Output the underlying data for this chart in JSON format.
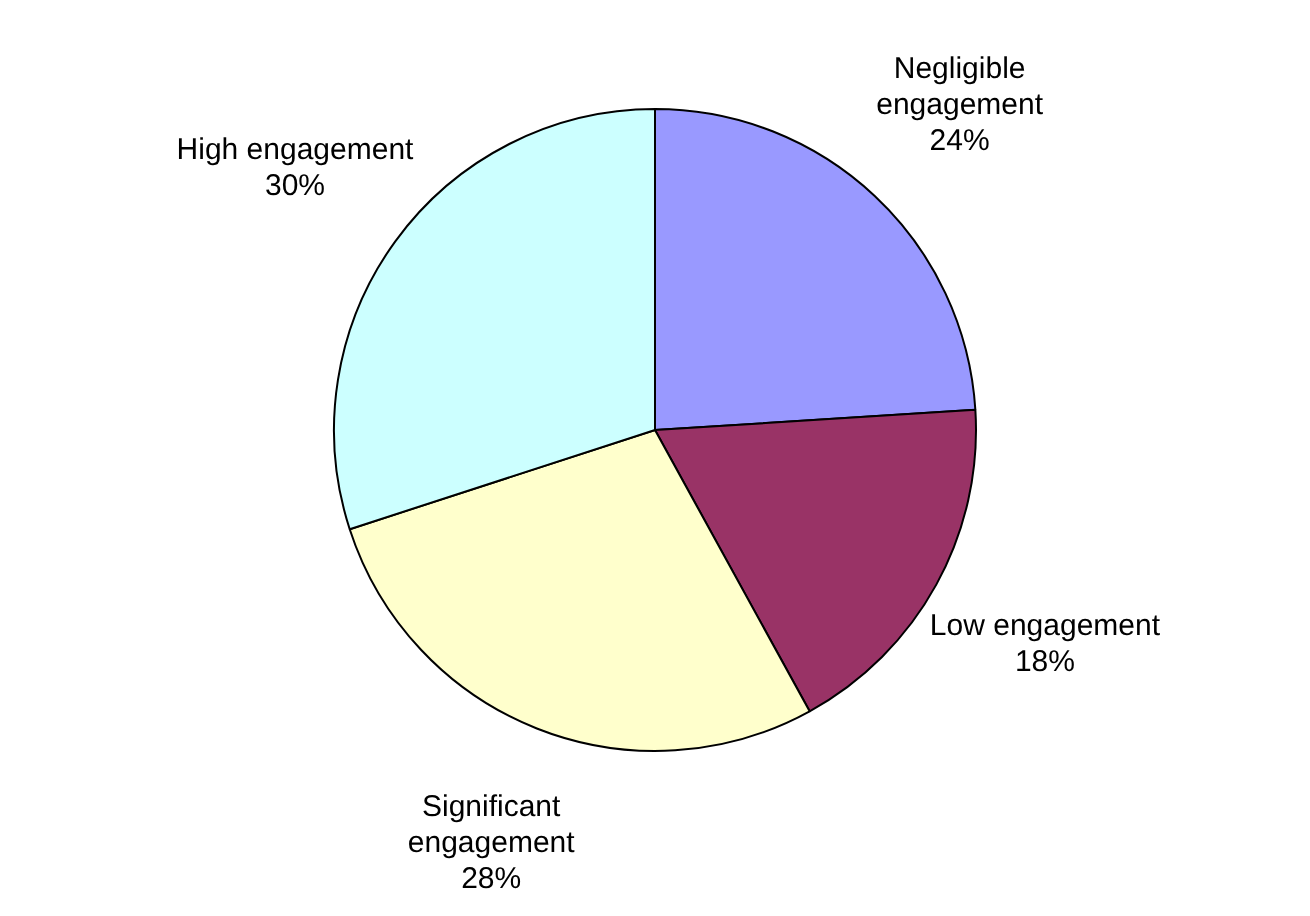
{
  "chart_data": {
    "type": "pie",
    "categories": [
      "Negligible engagement",
      "Low engagement",
      "Significant engagement",
      "High engagement"
    ],
    "values": [
      24,
      18,
      28,
      30
    ],
    "value_labels": [
      "24%",
      "18%",
      "28%",
      "30%"
    ],
    "colors": [
      "#9999ff",
      "#993366",
      "#ffffcc",
      "#ccffff"
    ],
    "legend": false
  }
}
